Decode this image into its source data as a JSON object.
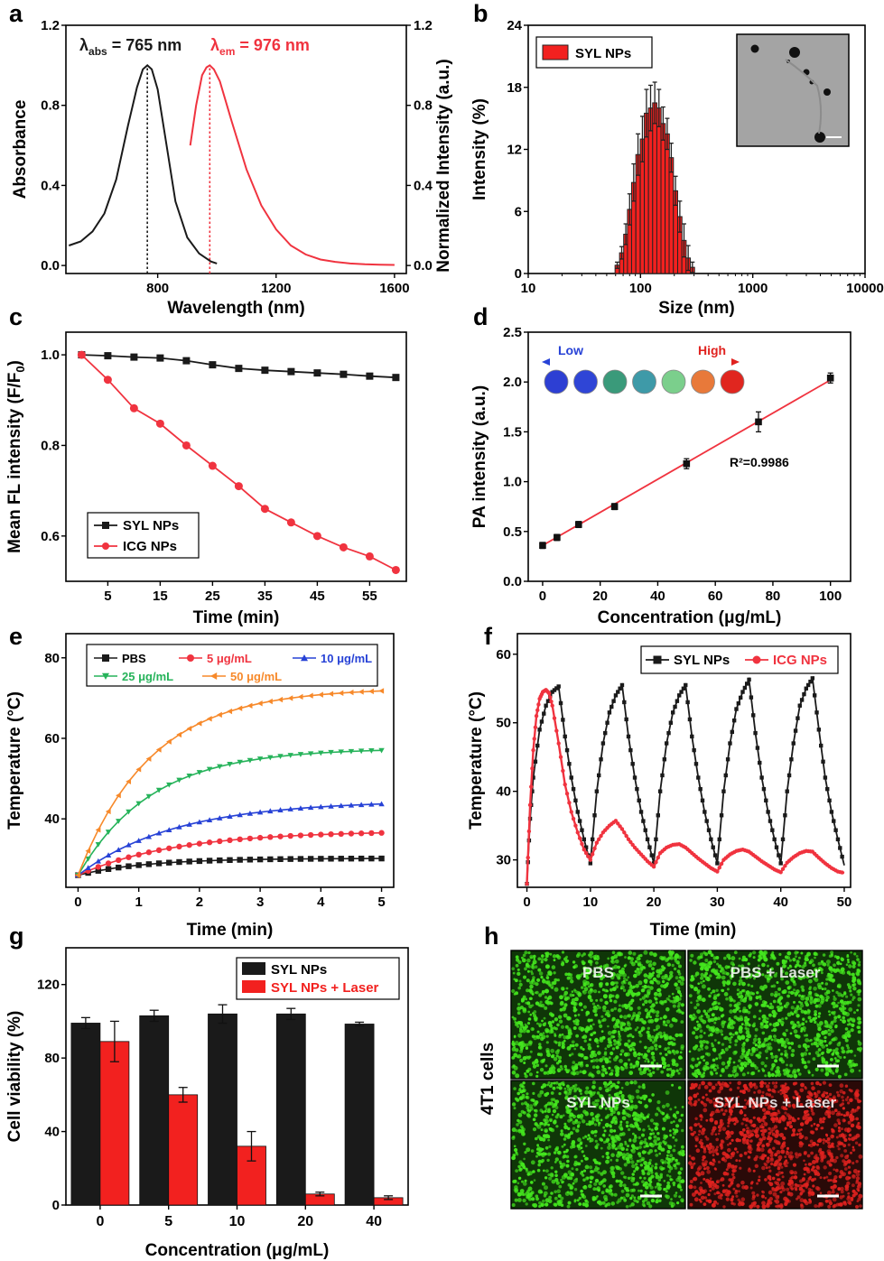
{
  "colors": {
    "black": "#1a1a1a",
    "red": "#f0333f",
    "bar_red": "#f2211f",
    "blue": "#2742d6",
    "green": "#26b35a",
    "orange": "#f7892a",
    "cell_green": "#44e61e",
    "cell_red": "#e0221f"
  },
  "panels": {
    "a": {
      "letter": "a",
      "chart_data": {
        "type": "line",
        "xlabel": "Wavelength (nm)",
        "ylabel": "Absorbance",
        "ylabel_right": "Normalized Intensity (a.u.)",
        "xlim": [
          490,
          1640
        ],
        "ylim": [
          -0.04,
          1.2
        ],
        "ylim_right": [
          -0.04,
          1.2
        ],
        "xticks": [
          "800",
          "1200",
          "1600"
        ],
        "yticks": [
          "0.0",
          "0.4",
          "0.8",
          "1.2"
        ],
        "yticks_right": [
          "0.0",
          "0.4",
          "0.8",
          "1.2"
        ],
        "series": [
          {
            "color": "black",
            "x": [
              500,
              540,
              580,
              620,
              660,
              700,
              730,
              750,
              765,
              780,
              800,
              830,
              860,
              900,
              940,
              980,
              1000
            ],
            "y": [
              0.1,
              0.12,
              0.17,
              0.26,
              0.43,
              0.7,
              0.89,
              0.98,
              1.0,
              0.98,
              0.88,
              0.6,
              0.32,
              0.14,
              0.06,
              0.02,
              0.01
            ]
          },
          {
            "color": "red",
            "x": [
              910,
              930,
              950,
              965,
              976,
              990,
              1010,
              1050,
              1100,
              1150,
              1200,
              1250,
              1300,
              1350,
              1400,
              1450,
              1500,
              1550,
              1600
            ],
            "y": [
              0.6,
              0.8,
              0.95,
              0.99,
              1.0,
              0.98,
              0.92,
              0.72,
              0.48,
              0.3,
              0.18,
              0.1,
              0.055,
              0.03,
              0.018,
              0.01,
              0.006,
              0.004,
              0.003
            ]
          }
        ],
        "vlines": [
          {
            "x": 765,
            "y": 1.0,
            "color": "black"
          },
          {
            "x": 976,
            "y": 1.0,
            "color": "red"
          }
        ],
        "annotations": [
          {
            "main": "λ",
            "sub": "abs",
            "rest": " = 765 nm",
            "color": "black"
          },
          {
            "main": "λ",
            "sub": "em",
            "rest": " = 976 nm",
            "color": "red"
          }
        ]
      }
    },
    "b": {
      "letter": "b",
      "chart_data": {
        "type": "bar",
        "xscale": "log",
        "xlabel": "Size (nm)",
        "ylabel": "Intensity (%)",
        "xlim": [
          10,
          10000
        ],
        "ylim": [
          0,
          24
        ],
        "xticks": [
          "10",
          "100",
          "1000",
          "10000"
        ],
        "yticks": [
          "0",
          "6",
          "12",
          "18",
          "24"
        ],
        "legend": "SYL NPs",
        "legend_position": "top-left",
        "inset": "TEM image",
        "inset_position": "top-right",
        "x": [
          62,
          68,
          74,
          80,
          87,
          95,
          104,
          113,
          123,
          134,
          146,
          159,
          173,
          188,
          205,
          224,
          244,
          266,
          290
        ],
        "values": [
          0.8,
          2.0,
          3.8,
          6.2,
          8.8,
          11.5,
          13.0,
          15.5,
          16.0,
          16.5,
          16.0,
          14.5,
          13.5,
          11.2,
          8.0,
          5.5,
          3.2,
          1.5,
          0.6
        ],
        "errors": [
          0.3,
          0.6,
          1.0,
          1.5,
          1.8,
          2.0,
          2.2,
          2.3,
          2.2,
          2.0,
          1.8,
          1.6,
          1.5,
          1.4,
          1.4,
          1.5,
          1.6,
          1.2,
          0.5
        ]
      }
    },
    "c": {
      "letter": "c",
      "chart_data": {
        "type": "line",
        "xlabel": "Time (min)",
        "ylabel": "Mean FL intensity (F/F",
        "ylabel_sub": "0",
        "ylabel_end": ")",
        "xlim": [
          -3,
          62
        ],
        "ylim": [
          0.5,
          1.05
        ],
        "xticks": [
          "5",
          "15",
          "25",
          "35",
          "45",
          "55"
        ],
        "yticks": [
          "0.6",
          "0.8",
          "1.0"
        ],
        "legend_position": "bottom-left",
        "series": [
          {
            "name": "SYL NPs",
            "color": "black",
            "marker": "square",
            "x": [
              0,
              5,
              10,
              15,
              20,
              25,
              30,
              35,
              40,
              45,
              50,
              55,
              60
            ],
            "y": [
              1.0,
              0.998,
              0.995,
              0.993,
              0.987,
              0.978,
              0.97,
              0.966,
              0.963,
              0.96,
              0.957,
              0.953,
              0.95
            ]
          },
          {
            "name": "ICG NPs",
            "color": "red",
            "marker": "circle",
            "x": [
              0,
              5,
              10,
              15,
              20,
              25,
              30,
              35,
              40,
              45,
              50,
              55,
              60
            ],
            "y": [
              1.0,
              0.945,
              0.882,
              0.848,
              0.8,
              0.755,
              0.71,
              0.66,
              0.63,
              0.6,
              0.575,
              0.555,
              0.525
            ]
          }
        ]
      }
    },
    "d": {
      "letter": "d",
      "chart_data": {
        "type": "scatter",
        "xlabel": "Concentration (μg/mL)",
        "ylabel": "PA intensity (a.u.)",
        "xlim": [
          -5,
          107
        ],
        "ylim": [
          0,
          2.5
        ],
        "xticks": [
          "0",
          "20",
          "40",
          "60",
          "80",
          "100"
        ],
        "yticks": [
          "0.0",
          "0.5",
          "1.0",
          "1.5",
          "2.0",
          "2.5"
        ],
        "x": [
          0,
          5,
          12.5,
          25,
          50,
          75,
          100
        ],
        "y": [
          0.36,
          0.44,
          0.57,
          0.75,
          1.18,
          1.6,
          2.04
        ],
        "errors": [
          0.03,
          0.03,
          0.03,
          0.03,
          0.05,
          0.1,
          0.05
        ],
        "fit": {
          "x": [
            0,
            100
          ],
          "y": [
            0.36,
            2.02
          ],
          "color": "red"
        },
        "annotation": "R²=0.9986",
        "inset_low": "Low",
        "inset_high": "High",
        "inset_dots": [
          "#2d3fd3",
          "#2f45d6",
          "#3a9a7a",
          "#3e9aa8",
          "#7bcf8c",
          "#e8793a",
          "#e0261f"
        ]
      }
    },
    "e": {
      "letter": "e",
      "chart_data": {
        "type": "line",
        "xlabel": "Time (min)",
        "ylabel": "Temperature (°C)",
        "xlim": [
          -0.2,
          5.2
        ],
        "ylim": [
          23,
          86
        ],
        "xticks": [
          "0",
          "1",
          "2",
          "3",
          "4",
          "5"
        ],
        "yticks": [
          "40",
          "60",
          "80"
        ],
        "legend_position": "top",
        "series": [
          {
            "name": "PBS",
            "color": "black",
            "marker": "square",
            "T0": 26,
            "Tmax": 30.2,
            "tau": 1.1
          },
          {
            "name": "5 μg/mL",
            "color": "red",
            "marker": "circle",
            "T0": 26,
            "Tmax": 37,
            "tau": 1.6
          },
          {
            "name": "10 μg/mL",
            "color": "blue",
            "marker": "triangle-up",
            "T0": 26,
            "Tmax": 44.5,
            "tau": 1.6
          },
          {
            "name": "25 μg/mL",
            "color": "green",
            "marker": "triangle-down",
            "T0": 26,
            "Tmax": 57.5,
            "tau": 1.2
          },
          {
            "name": "50 μg/mL",
            "color": "orange",
            "marker": "triangle-left",
            "T0": 26,
            "Tmax": 72.5,
            "tau": 1.2
          }
        ]
      }
    },
    "f": {
      "letter": "f",
      "chart_data": {
        "type": "line",
        "xlabel": "Time (min)",
        "ylabel": "Temperature (°C)",
        "xlim": [
          -1.5,
          51
        ],
        "ylim": [
          26,
          63
        ],
        "xticks": [
          "0",
          "10",
          "20",
          "30",
          "40",
          "50"
        ],
        "yticks": [
          "30",
          "40",
          "50",
          "60"
        ],
        "legend_position": "top-right",
        "series": [
          {
            "name": "SYL NPs",
            "color": "black",
            "marker": "square",
            "x": [
              0,
              0.5,
              1,
              2,
              3,
              4,
              5,
              6,
              7,
              8,
              9,
              10,
              11,
              12,
              13,
              14,
              15,
              16,
              17,
              18,
              19,
              20,
              21,
              22,
              23,
              24,
              25,
              26,
              27,
              28,
              29,
              30,
              31,
              32,
              33,
              34,
              35,
              36,
              37,
              38,
              39,
              40,
              41,
              42,
              43,
              44,
              45,
              46,
              47,
              48,
              49,
              50
            ],
            "y": [
              26.5,
              36,
              42,
              49,
              52.5,
              54.5,
              55.3,
              48,
              42,
              37,
              33,
              29.5,
              40,
              47,
              51.5,
              54,
              55.5,
              48,
              42,
              37,
              33,
              29.5,
              40,
              47,
              51.5,
              54,
              55.5,
              48,
              42,
              37,
              33,
              29.5,
              40,
              47,
              52,
              54.5,
              56.3,
              48.5,
              42,
              37,
              33,
              29.5,
              40,
              47,
              52.5,
              55,
              56.5,
              49,
              42,
              37,
              33,
              29.2
            ]
          },
          {
            "name": "ICG NPs",
            "color": "red",
            "marker": "circle",
            "x": [
              0,
              0.5,
              1,
              1.5,
              2,
              2.5,
              3,
              3.5,
              4,
              5,
              6,
              7,
              8,
              9,
              10,
              11,
              12,
              13,
              14,
              15,
              16,
              17,
              18,
              19,
              20,
              21,
              22,
              23,
              24,
              25,
              26,
              27,
              28,
              29,
              30,
              31,
              32,
              33,
              34,
              35,
              36,
              37,
              38,
              39,
              40,
              41,
              42,
              43,
              44,
              45,
              46,
              47,
              48,
              49,
              50
            ],
            "y": [
              26.5,
              38,
              46,
              51,
              53.5,
              54.5,
              54.8,
              54.3,
              52.5,
              47,
              41,
              37,
              34,
              31.5,
              30,
              32.5,
              34,
              35,
              35.7,
              34.5,
              33,
              31.8,
              30.8,
              29.8,
              29,
              31,
              31.8,
              32.2,
              32.3,
              31.8,
              31,
              30.2,
              29.5,
              28.8,
              28.3,
              30,
              30.8,
              31.3,
              31.5,
              31.2,
              30.5,
              29.8,
              29.2,
              28.6,
              28.2,
              29.6,
              30.4,
              31,
              31.3,
              31.2,
              30.3,
              29.5,
              28.8,
              28.3,
              28.1
            ]
          }
        ]
      }
    },
    "g": {
      "letter": "g",
      "chart_data": {
        "type": "bar",
        "xlabel": "Concentration (μg/mL)",
        "ylabel": "Cell viability (%)",
        "ylim": [
          0,
          140
        ],
        "categories": [
          "0",
          "5",
          "10",
          "20",
          "40"
        ],
        "yticks": [
          "0",
          "40",
          "80",
          "120"
        ],
        "legend_position": "top-right",
        "series": [
          {
            "name": "SYL NPs",
            "color": "black",
            "values": [
              99,
              103,
              104,
              104,
              98.5
            ],
            "errors": [
              3,
              3,
              5,
              3,
              1
            ]
          },
          {
            "name": "SYL NPs + Laser",
            "color": "bar_red",
            "values": [
              89,
              60,
              32,
              6,
              4
            ],
            "errors": [
              11,
              4,
              8,
              1,
              1
            ]
          }
        ]
      }
    },
    "h": {
      "letter": "h",
      "side_label": "4T1 cells",
      "tiles": [
        {
          "label": "PBS",
          "stain": "cell_green",
          "density": 1.0
        },
        {
          "label": "PBS + Laser",
          "stain": "cell_green",
          "density": 1.0
        },
        {
          "label": "SYL NPs",
          "stain": "cell_green",
          "density": 1.0
        },
        {
          "label": "SYL NPs + Laser",
          "stain": "cell_red",
          "density": 1.0
        }
      ]
    }
  }
}
